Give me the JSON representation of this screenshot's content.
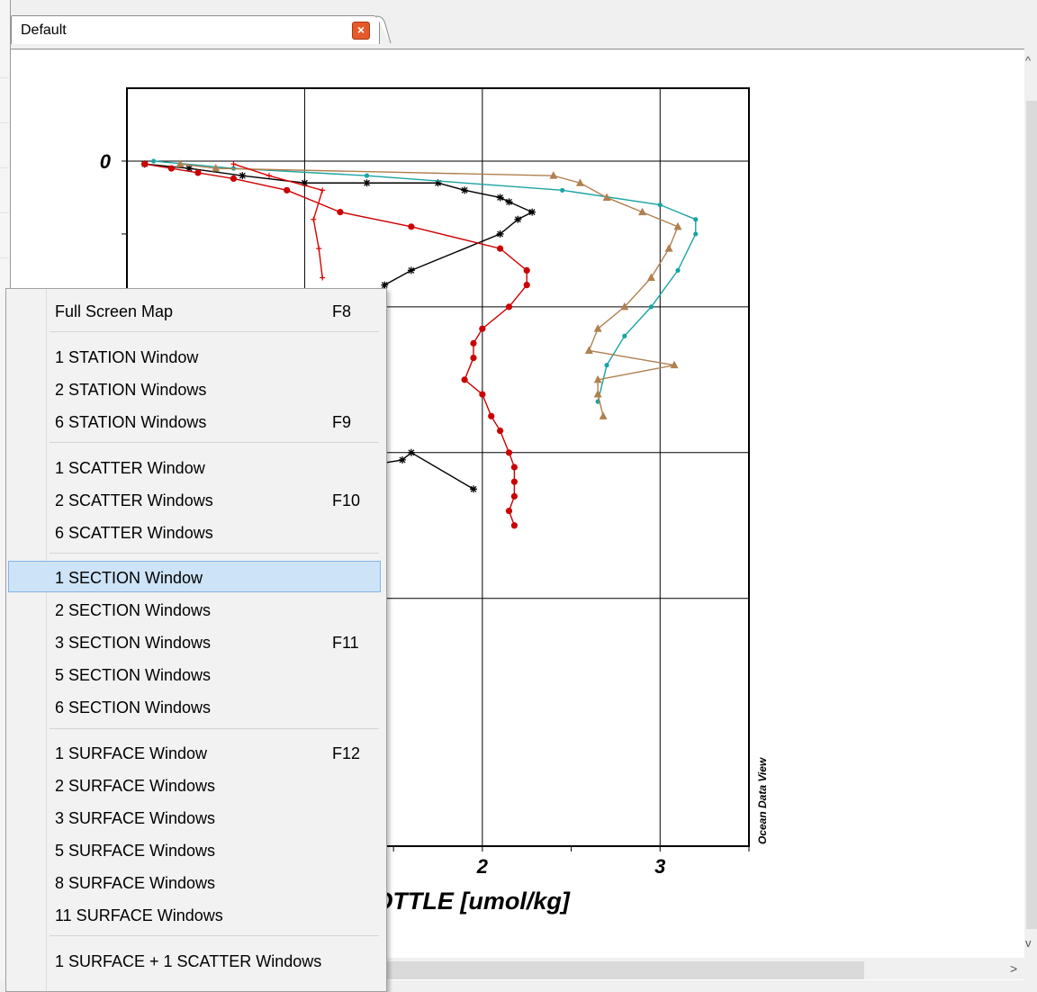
{
  "tab": {
    "title": "Default",
    "close_label": "×"
  },
  "watermark": "Ocean Data View",
  "chart_data": {
    "type": "line",
    "xlabel": "CONC_BOTTLE [umol/kg]",
    "x_ticks": [
      2,
      3
    ],
    "y_ticks": [
      0
    ],
    "xlim": [
      0,
      3.5
    ],
    "ylim": [
      4.7,
      -0.5
    ],
    "grid": true,
    "series": [
      {
        "color": "#000000",
        "marker": "star",
        "points": [
          [
            0.1,
            0.02
          ],
          [
            0.35,
            0.05
          ],
          [
            0.65,
            0.1
          ],
          [
            1.0,
            0.15
          ],
          [
            1.35,
            0.15
          ],
          [
            1.75,
            0.15
          ],
          [
            1.9,
            0.2
          ],
          [
            2.1,
            0.25
          ],
          [
            2.15,
            0.28
          ],
          [
            2.28,
            0.35
          ],
          [
            2.2,
            0.4
          ],
          [
            2.1,
            0.5
          ],
          [
            1.6,
            0.75
          ],
          [
            1.45,
            0.85
          ],
          [
            1.3,
            2.1
          ],
          [
            1.55,
            2.05
          ],
          [
            1.6,
            2.0
          ],
          [
            1.95,
            2.25
          ]
        ]
      },
      {
        "color": "#cc0000",
        "marker": "circle",
        "points": [
          [
            0.1,
            0.02
          ],
          [
            0.25,
            0.05
          ],
          [
            0.4,
            0.08
          ],
          [
            0.6,
            0.12
          ],
          [
            0.9,
            0.2
          ],
          [
            1.2,
            0.35
          ],
          [
            1.6,
            0.45
          ],
          [
            2.1,
            0.6
          ],
          [
            2.25,
            0.75
          ],
          [
            2.25,
            0.85
          ],
          [
            2.15,
            1.0
          ],
          [
            2.0,
            1.15
          ],
          [
            1.95,
            1.25
          ],
          [
            1.95,
            1.35
          ],
          [
            1.9,
            1.5
          ],
          [
            2.0,
            1.6
          ],
          [
            2.05,
            1.75
          ],
          [
            2.1,
            1.85
          ],
          [
            2.15,
            2.0
          ],
          [
            2.18,
            2.1
          ],
          [
            2.18,
            2.2
          ],
          [
            2.18,
            2.3
          ],
          [
            2.15,
            2.4
          ],
          [
            2.18,
            2.5
          ]
        ]
      },
      {
        "color": "#1aa3a3",
        "marker": "diamond",
        "points": [
          [
            0.15,
            0.0
          ],
          [
            0.6,
            0.05
          ],
          [
            1.35,
            0.1
          ],
          [
            2.45,
            0.2
          ],
          [
            3.0,
            0.3
          ],
          [
            3.2,
            0.4
          ],
          [
            3.2,
            0.5
          ],
          [
            3.1,
            0.75
          ],
          [
            2.95,
            1.0
          ],
          [
            2.8,
            1.2
          ],
          [
            2.7,
            1.4
          ],
          [
            2.65,
            1.65
          ]
        ]
      },
      {
        "color": "#b08050",
        "marker": "triangle",
        "points": [
          [
            0.3,
            0.02
          ],
          [
            0.5,
            0.05
          ],
          [
            2.4,
            0.1
          ],
          [
            2.55,
            0.15
          ],
          [
            2.7,
            0.25
          ],
          [
            2.9,
            0.35
          ],
          [
            3.1,
            0.45
          ],
          [
            3.05,
            0.6
          ],
          [
            2.95,
            0.8
          ],
          [
            2.8,
            1.0
          ],
          [
            2.65,
            1.15
          ],
          [
            2.6,
            1.3
          ],
          [
            3.08,
            1.4
          ],
          [
            2.65,
            1.5
          ],
          [
            2.65,
            1.6
          ],
          [
            2.68,
            1.75
          ]
        ]
      },
      {
        "color": "#dd0000",
        "marker": "cross",
        "points": [
          [
            0.6,
            0.02
          ],
          [
            0.8,
            0.1
          ],
          [
            1.1,
            0.2
          ],
          [
            1.05,
            0.4
          ],
          [
            1.08,
            0.6
          ],
          [
            1.1,
            0.8
          ]
        ]
      }
    ]
  },
  "menu": {
    "items": [
      {
        "label": "Full Screen Map",
        "shortcut": "F8"
      },
      {
        "label": "1 STATION Window",
        "shortcut": ""
      },
      {
        "label": "2 STATION Windows",
        "shortcut": ""
      },
      {
        "label": "6 STATION Windows",
        "shortcut": "F9"
      },
      {
        "label": "1 SCATTER Window",
        "shortcut": ""
      },
      {
        "label": "2 SCATTER Windows",
        "shortcut": "F10"
      },
      {
        "label": "6 SCATTER Windows",
        "shortcut": ""
      },
      {
        "label": "1 SECTION Window",
        "shortcut": "",
        "highlighted": true
      },
      {
        "label": "2 SECTION Windows",
        "shortcut": ""
      },
      {
        "label": "3 SECTION Windows",
        "shortcut": "F11"
      },
      {
        "label": "5 SECTION Windows",
        "shortcut": ""
      },
      {
        "label": "6 SECTION Windows",
        "shortcut": ""
      },
      {
        "label": "1 SURFACE Window",
        "shortcut": "F12"
      },
      {
        "label": "2 SURFACE Windows",
        "shortcut": ""
      },
      {
        "label": "3 SURFACE Windows",
        "shortcut": ""
      },
      {
        "label": "5 SURFACE Windows",
        "shortcut": ""
      },
      {
        "label": "8 SURFACE Windows",
        "shortcut": ""
      },
      {
        "label": "11 SURFACE Windows",
        "shortcut": ""
      },
      {
        "label": "1 SURFACE + 1 SCATTER Windows",
        "shortcut": ""
      }
    ]
  }
}
